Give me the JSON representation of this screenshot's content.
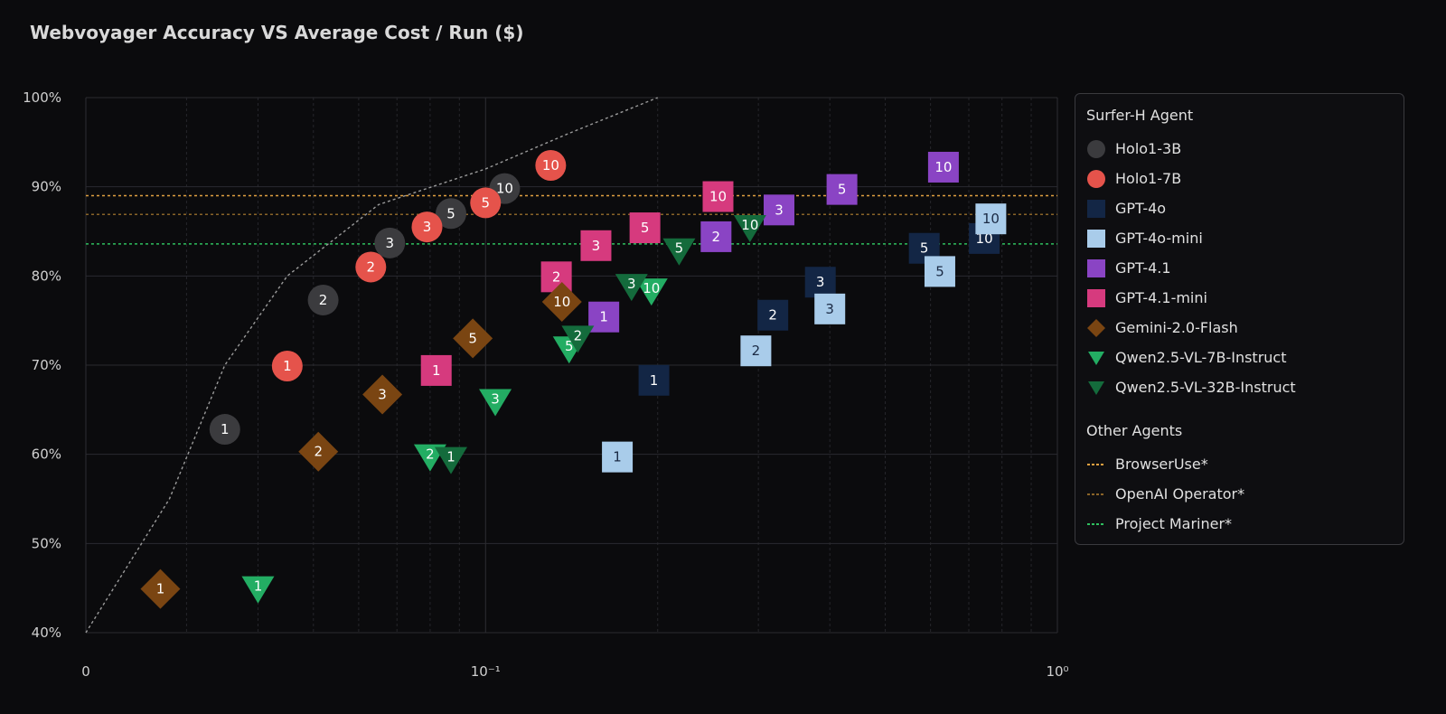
{
  "chart_data": {
    "type": "scatter",
    "title": "Webvoyager Accuracy VS Average Cost / Run ($)",
    "x_scale": "log",
    "x_tick_labels": [
      "0",
      "10⁻¹",
      "10⁰"
    ],
    "y_tick_labels": [
      "40%",
      "50%",
      "60%",
      "70%",
      "80%",
      "90%",
      "100%"
    ],
    "ylim": [
      40,
      100
    ],
    "grid": true,
    "legend_position": "right",
    "legend_group_titles": [
      "Surfer-H Agent",
      "Other Agents"
    ],
    "frontier_line": [
      [
        0.02,
        40
      ],
      [
        0.028,
        55
      ],
      [
        0.035,
        70
      ],
      [
        0.045,
        80
      ],
      [
        0.065,
        88
      ],
      [
        0.1,
        92
      ],
      [
        0.14,
        96
      ],
      [
        0.2,
        100
      ]
    ],
    "series": [
      {
        "name": "Holo1-3B",
        "marker": "circle",
        "color": "#3b3b3e",
        "points": [
          {
            "x": 0.035,
            "y": 62.8,
            "label": "1"
          },
          {
            "x": 0.052,
            "y": 77.3,
            "label": "2"
          },
          {
            "x": 0.068,
            "y": 83.7,
            "label": "3"
          },
          {
            "x": 0.087,
            "y": 87.0,
            "label": "5"
          },
          {
            "x": 0.108,
            "y": 89.8,
            "label": "10"
          }
        ]
      },
      {
        "name": "Holo1-7B",
        "marker": "circle",
        "color": "#e5534b",
        "points": [
          {
            "x": 0.045,
            "y": 69.9,
            "label": "1"
          },
          {
            "x": 0.063,
            "y": 81.0,
            "label": "2"
          },
          {
            "x": 0.079,
            "y": 85.5,
            "label": "3"
          },
          {
            "x": 0.1,
            "y": 88.2,
            "label": "5"
          },
          {
            "x": 0.13,
            "y": 92.4,
            "label": "10"
          }
        ]
      },
      {
        "name": "GPT-4o",
        "marker": "square",
        "color": "#132645",
        "points": [
          {
            "x": 0.197,
            "y": 68.3,
            "label": "1"
          },
          {
            "x": 0.318,
            "y": 75.6,
            "label": "2"
          },
          {
            "x": 0.385,
            "y": 79.3,
            "label": "3"
          },
          {
            "x": 0.585,
            "y": 83.1,
            "label": "5"
          },
          {
            "x": 0.745,
            "y": 84.2,
            "label": "10"
          }
        ]
      },
      {
        "name": "GPT-4o-mini",
        "marker": "square",
        "color": "#a9ccea",
        "points": [
          {
            "x": 0.17,
            "y": 59.7,
            "label": "1"
          },
          {
            "x": 0.297,
            "y": 71.6,
            "label": "2"
          },
          {
            "x": 0.4,
            "y": 76.3,
            "label": "3"
          },
          {
            "x": 0.623,
            "y": 80.5,
            "label": "5"
          },
          {
            "x": 0.765,
            "y": 86.4,
            "label": "10"
          }
        ]
      },
      {
        "name": "GPT-4.1",
        "marker": "square",
        "color": "#8a44c4",
        "points": [
          {
            "x": 0.161,
            "y": 75.4,
            "label": "1"
          },
          {
            "x": 0.253,
            "y": 84.4,
            "label": "2"
          },
          {
            "x": 0.326,
            "y": 87.4,
            "label": "3"
          },
          {
            "x": 0.42,
            "y": 89.7,
            "label": "5"
          },
          {
            "x": 0.632,
            "y": 92.2,
            "label": "10"
          }
        ]
      },
      {
        "name": "GPT-4.1-mini",
        "marker": "square",
        "color": "#d63a7e",
        "points": [
          {
            "x": 0.082,
            "y": 69.4,
            "label": "1"
          },
          {
            "x": 0.133,
            "y": 79.9,
            "label": "2"
          },
          {
            "x": 0.156,
            "y": 83.4,
            "label": "3"
          },
          {
            "x": 0.19,
            "y": 85.4,
            "label": "5"
          },
          {
            "x": 0.255,
            "y": 88.9,
            "label": "10"
          }
        ]
      },
      {
        "name": "Gemini-2.0-Flash",
        "marker": "diamond",
        "color": "#7a4512",
        "points": [
          {
            "x": 0.027,
            "y": 44.9,
            "label": "1"
          },
          {
            "x": 0.051,
            "y": 60.3,
            "label": "2"
          },
          {
            "x": 0.066,
            "y": 66.7,
            "label": "3"
          },
          {
            "x": 0.095,
            "y": 73.0,
            "label": "5"
          },
          {
            "x": 0.136,
            "y": 77.1,
            "label": "10"
          }
        ]
      },
      {
        "name": "Qwen2.5-VL-7B-Instruct",
        "marker": "triangle-down",
        "color": "#23ad63",
        "points": [
          {
            "x": 0.04,
            "y": 44.9,
            "label": "1"
          },
          {
            "x": 0.08,
            "y": 59.7,
            "label": "2"
          },
          {
            "x": 0.104,
            "y": 65.9,
            "label": "3"
          },
          {
            "x": 0.14,
            "y": 71.8,
            "label": "5"
          },
          {
            "x": 0.195,
            "y": 78.3,
            "label": "10"
          }
        ]
      },
      {
        "name": "Qwen2.5-VL-32B-Instruct",
        "marker": "triangle-down",
        "color": "#146b3c",
        "points": [
          {
            "x": 0.087,
            "y": 59.4,
            "label": "1"
          },
          {
            "x": 0.145,
            "y": 73.0,
            "label": "2"
          },
          {
            "x": 0.18,
            "y": 78.8,
            "label": "3"
          },
          {
            "x": 0.218,
            "y": 82.8,
            "label": "5"
          },
          {
            "x": 0.29,
            "y": 85.4,
            "label": "10"
          }
        ]
      }
    ],
    "reference_lines": [
      {
        "name": "BrowserUse*",
        "y": 89.0,
        "color": "#e0a040",
        "style": "dotted"
      },
      {
        "name": "OpenAI Operator*",
        "y": 86.9,
        "color": "#8a6428",
        "style": "dotted"
      },
      {
        "name": "Project Mariner*",
        "y": 83.6,
        "color": "#2fbf5f",
        "style": "dotted"
      }
    ]
  }
}
